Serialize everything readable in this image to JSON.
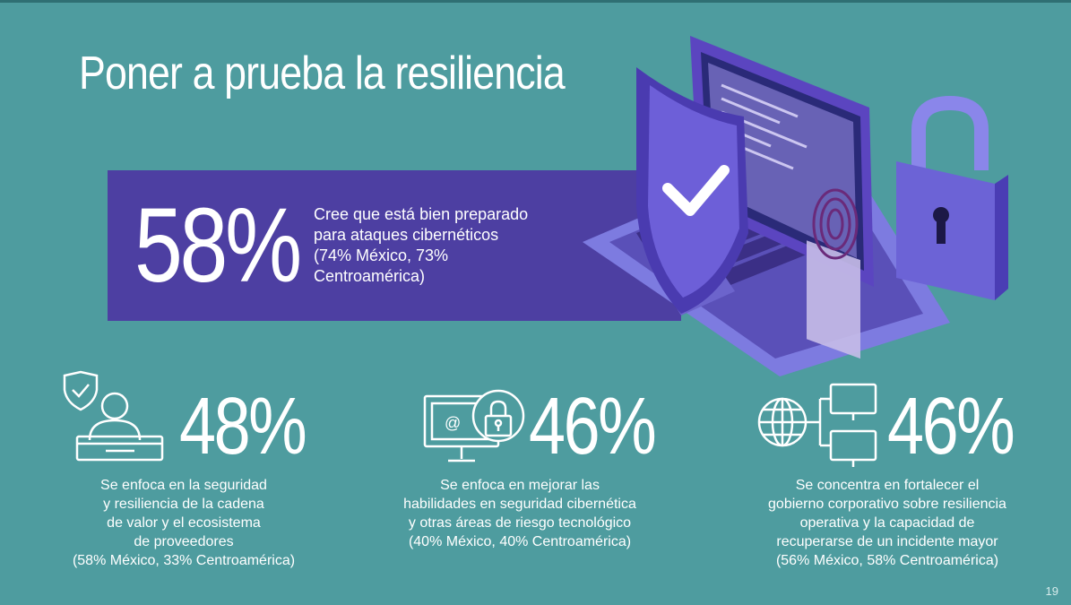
{
  "slide": {
    "title": "Poner a prueba la resiliencia",
    "page_number": "19"
  },
  "hero": {
    "percent": "58%",
    "lines": [
      "Cree que está bien preparado",
      "para ataques cibernéticos",
      "(74% México, 73%",
      "Centroamérica)"
    ]
  },
  "stats": [
    {
      "percent": "48%",
      "icon": "shield-person-desk-icon",
      "lines": [
        "Se enfoca en la seguridad",
        "y resiliencia de la cadena",
        "de valor y el ecosistema",
        "de proveedores",
        "(58% México, 33% Centroamérica)"
      ]
    },
    {
      "percent": "46%",
      "icon": "monitor-email-lock-icon",
      "lines": [
        "Se enfoca en mejorar las",
        "habilidades en seguridad cibernética",
        "y otras áreas de riesgo tecnológico",
        "(40% México, 40% Centroamérica)"
      ]
    },
    {
      "percent": "46%",
      "icon": "globe-network-icon",
      "lines": [
        "Se concentra en fortalecer el",
        "gobierno corporativo sobre resiliencia",
        "operativa y la capacidad de",
        "recuperarse de un incidente mayor",
        "(56% México, 58% Centroamérica)"
      ]
    }
  ],
  "colors": {
    "background": "#4e9c9f",
    "hero_band": "#4d3fa2",
    "text": "#ffffff"
  }
}
